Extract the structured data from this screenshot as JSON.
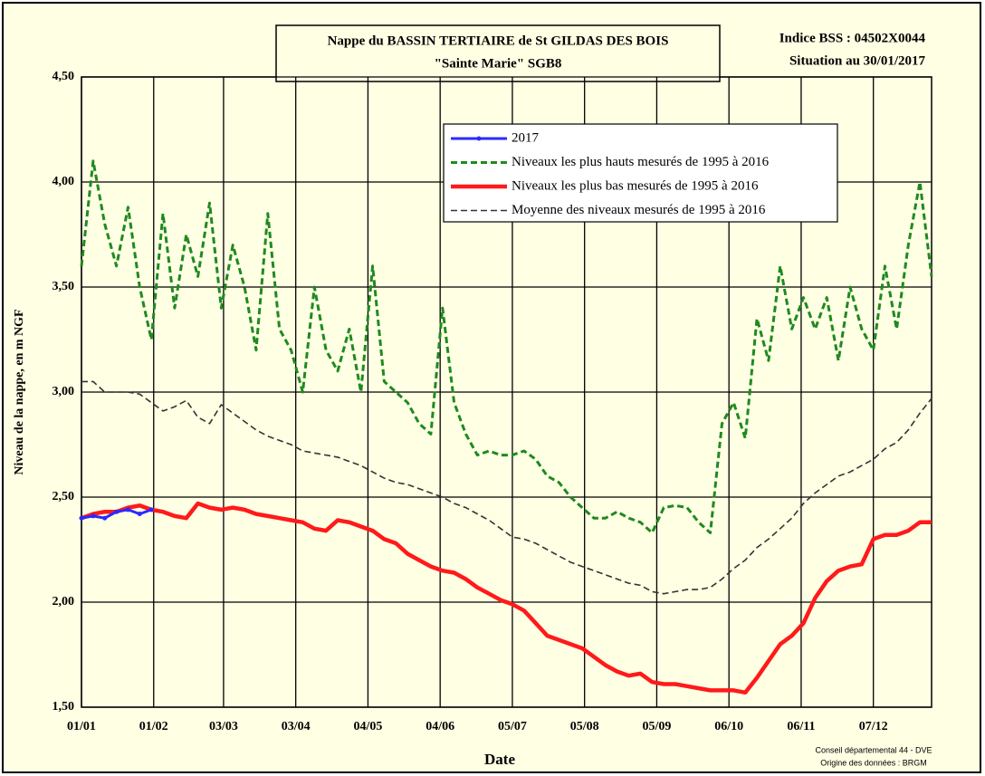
{
  "chart_data": {
    "type": "line",
    "title": "Nappe du BASSIN TERTIAIRE de St GILDAS DES BOIS",
    "subtitle": "\"Sainte Marie\" SGB8",
    "annotations": [
      "Indice BSS : 04502X0044",
      "Situation au 30/01/2017",
      "Conseil départemental 44 - DVE",
      "Origine des données : BRGM"
    ],
    "y_label": "Niveau de la nappe, en m NGF",
    "x_label": "Date",
    "x": [
      0,
      5,
      10,
      15,
      20,
      25,
      30,
      35,
      40,
      45,
      50,
      55,
      60,
      65,
      70,
      75,
      80,
      85,
      90,
      95,
      100,
      105,
      110,
      115,
      120,
      125,
      130,
      135,
      140,
      145,
      150,
      155,
      160,
      165,
      170,
      175,
      180,
      185,
      190,
      195,
      200,
      205,
      210,
      215,
      220,
      225,
      230,
      235,
      240,
      245,
      250,
      255,
      260,
      265,
      270,
      275,
      280,
      285,
      290,
      295,
      300,
      305,
      310,
      315,
      320,
      325,
      330,
      335,
      340,
      345,
      350,
      355,
      360,
      365
    ],
    "series": [
      {
        "name": "2017",
        "color": "#2a2aff",
        "style": "solid",
        "marker": true,
        "x": [
          0,
          5,
          10,
          15,
          20,
          25,
          30
        ],
        "values": [
          2.4,
          2.41,
          2.4,
          2.43,
          2.44,
          2.42,
          2.44
        ]
      },
      {
        "name": "Niveaux les plus hauts mesurés de 1995 à 2016",
        "color": "#1f8a1f",
        "style": "dashed",
        "values": [
          3.6,
          4.1,
          3.8,
          3.6,
          3.88,
          3.5,
          3.25,
          3.85,
          3.4,
          3.75,
          3.55,
          3.9,
          3.4,
          3.7,
          3.5,
          3.2,
          3.85,
          3.3,
          3.2,
          3.0,
          3.5,
          3.2,
          3.1,
          3.3,
          3.0,
          3.6,
          3.05,
          3.0,
          2.95,
          2.85,
          2.8,
          3.4,
          2.95,
          2.8,
          2.7,
          2.72,
          2.7,
          2.7,
          2.72,
          2.68,
          2.6,
          2.57,
          2.5,
          2.45,
          2.4,
          2.4,
          2.43,
          2.4,
          2.38,
          2.33,
          2.45,
          2.46,
          2.45,
          2.38,
          2.33,
          2.85,
          2.95,
          2.78,
          3.35,
          3.15,
          3.6,
          3.3,
          3.45,
          3.3,
          3.45,
          3.15,
          3.5,
          3.3,
          3.2,
          3.6,
          3.3,
          3.7,
          4.0,
          3.55
        ]
      },
      {
        "name": "Niveaux les plus bas mesurés de 1995 à 2016",
        "color": "#ff1a1a",
        "style": "solid",
        "values": [
          2.4,
          2.42,
          2.43,
          2.43,
          2.45,
          2.46,
          2.44,
          2.43,
          2.41,
          2.4,
          2.47,
          2.45,
          2.44,
          2.45,
          2.44,
          2.42,
          2.41,
          2.4,
          2.39,
          2.38,
          2.35,
          2.34,
          2.39,
          2.38,
          2.36,
          2.34,
          2.3,
          2.28,
          2.23,
          2.2,
          2.17,
          2.15,
          2.14,
          2.11,
          2.07,
          2.04,
          2.01,
          1.99,
          1.96,
          1.9,
          1.84,
          1.82,
          1.8,
          1.78,
          1.74,
          1.7,
          1.67,
          1.65,
          1.66,
          1.62,
          1.61,
          1.61,
          1.6,
          1.59,
          1.58,
          1.58,
          1.58,
          1.57,
          1.64,
          1.72,
          1.8,
          1.84,
          1.9,
          2.02,
          2.1,
          2.15,
          2.17,
          2.18,
          2.3,
          2.32,
          2.32,
          2.34,
          2.38,
          2.38
        ]
      },
      {
        "name": "Moyenne des niveaux mesurés de 1995 à 2016",
        "color": "#333333",
        "style": "dashed",
        "values": [
          3.05,
          3.05,
          3.0,
          3.0,
          3.0,
          2.99,
          2.95,
          2.91,
          2.93,
          2.96,
          2.88,
          2.85,
          2.94,
          2.9,
          2.86,
          2.82,
          2.79,
          2.77,
          2.75,
          2.72,
          2.71,
          2.7,
          2.69,
          2.67,
          2.65,
          2.62,
          2.59,
          2.57,
          2.56,
          2.54,
          2.52,
          2.5,
          2.47,
          2.45,
          2.42,
          2.39,
          2.35,
          2.31,
          2.3,
          2.28,
          2.25,
          2.22,
          2.19,
          2.17,
          2.15,
          2.13,
          2.11,
          2.09,
          2.08,
          2.05,
          2.04,
          2.05,
          2.06,
          2.06,
          2.07,
          2.11,
          2.16,
          2.2,
          2.26,
          2.3,
          2.35,
          2.4,
          2.47,
          2.52,
          2.56,
          2.6,
          2.62,
          2.65,
          2.68,
          2.73,
          2.76,
          2.82,
          2.9,
          2.97
        ]
      }
    ],
    "xlim": [
      0,
      365
    ],
    "xticks": [
      {
        "value": 0,
        "label": "01/01"
      },
      {
        "value": 31,
        "label": "01/02"
      },
      {
        "value": 61,
        "label": "03/03"
      },
      {
        "value": 92,
        "label": "03/04"
      },
      {
        "value": 123,
        "label": "04/05"
      },
      {
        "value": 154,
        "label": "04/06"
      },
      {
        "value": 185,
        "label": "05/07"
      },
      {
        "value": 216,
        "label": "05/08"
      },
      {
        "value": 247,
        "label": "05/09"
      },
      {
        "value": 278,
        "label": "06/10"
      },
      {
        "value": 309,
        "label": "06/11"
      },
      {
        "value": 340,
        "label": "07/12"
      }
    ],
    "ylim": [
      1.5,
      4.5
    ],
    "yticks": [
      {
        "value": 1.5,
        "label": "1,50"
      },
      {
        "value": 2,
        "label": "2,00"
      },
      {
        "value": 2.5,
        "label": "2,50"
      },
      {
        "value": 3,
        "label": "3,00"
      },
      {
        "value": 3.5,
        "label": "3,50"
      },
      {
        "value": 4,
        "label": "4,00"
      },
      {
        "value": 4.5,
        "label": "4,50"
      }
    ],
    "grid": true,
    "legend": "top"
  }
}
